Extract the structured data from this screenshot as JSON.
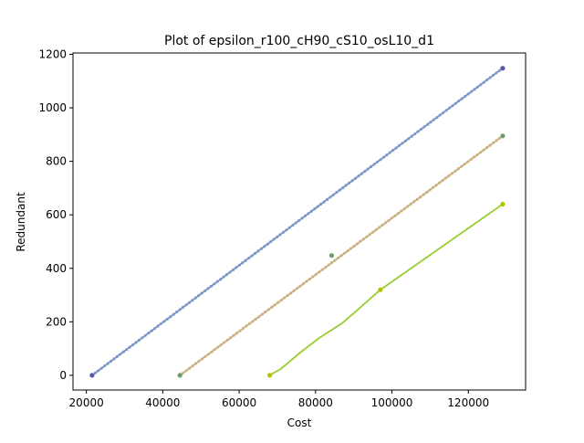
{
  "chart_data": {
    "type": "line",
    "title": "Plot of epsilon_r100_cH90_cS10_osL10_d1",
    "xlabel": "Cost",
    "ylabel": "Redundant",
    "xlim": [
      16500,
      135000
    ],
    "ylim": [
      -55,
      1205
    ],
    "x_ticks": [
      20000,
      40000,
      60000,
      80000,
      100000,
      120000
    ],
    "y_ticks": [
      0,
      200,
      400,
      600,
      800,
      1000,
      1200
    ],
    "grid": false,
    "legend": "none",
    "series": [
      {
        "color": "#7b93c9",
        "marker_color": "#5a5aa0",
        "dense_markers": true,
        "points": [
          [
            21500,
            0
          ],
          [
            129000,
            1148
          ]
        ],
        "end_markers": [
          [
            21500,
            0
          ],
          [
            129000,
            1148
          ]
        ]
      },
      {
        "color": "#c9b07e",
        "marker_color": "#6a9e6a",
        "dense_markers": true,
        "points": [
          [
            44500,
            0
          ],
          [
            129000,
            895
          ]
        ],
        "end_markers": [
          [
            44500,
            0
          ],
          [
            84200,
            448
          ],
          [
            129000,
            895
          ]
        ]
      },
      {
        "color": "#9acd32",
        "marker_color": "#b5c200",
        "dense_markers": false,
        "points": [
          [
            68000,
            0
          ],
          [
            71000,
            25
          ],
          [
            76000,
            85
          ],
          [
            81000,
            140
          ],
          [
            87000,
            195
          ],
          [
            97000,
            320
          ],
          [
            129000,
            640
          ]
        ],
        "end_markers": [
          [
            68000,
            0
          ],
          [
            97000,
            320
          ],
          [
            129000,
            640
          ]
        ]
      }
    ]
  }
}
